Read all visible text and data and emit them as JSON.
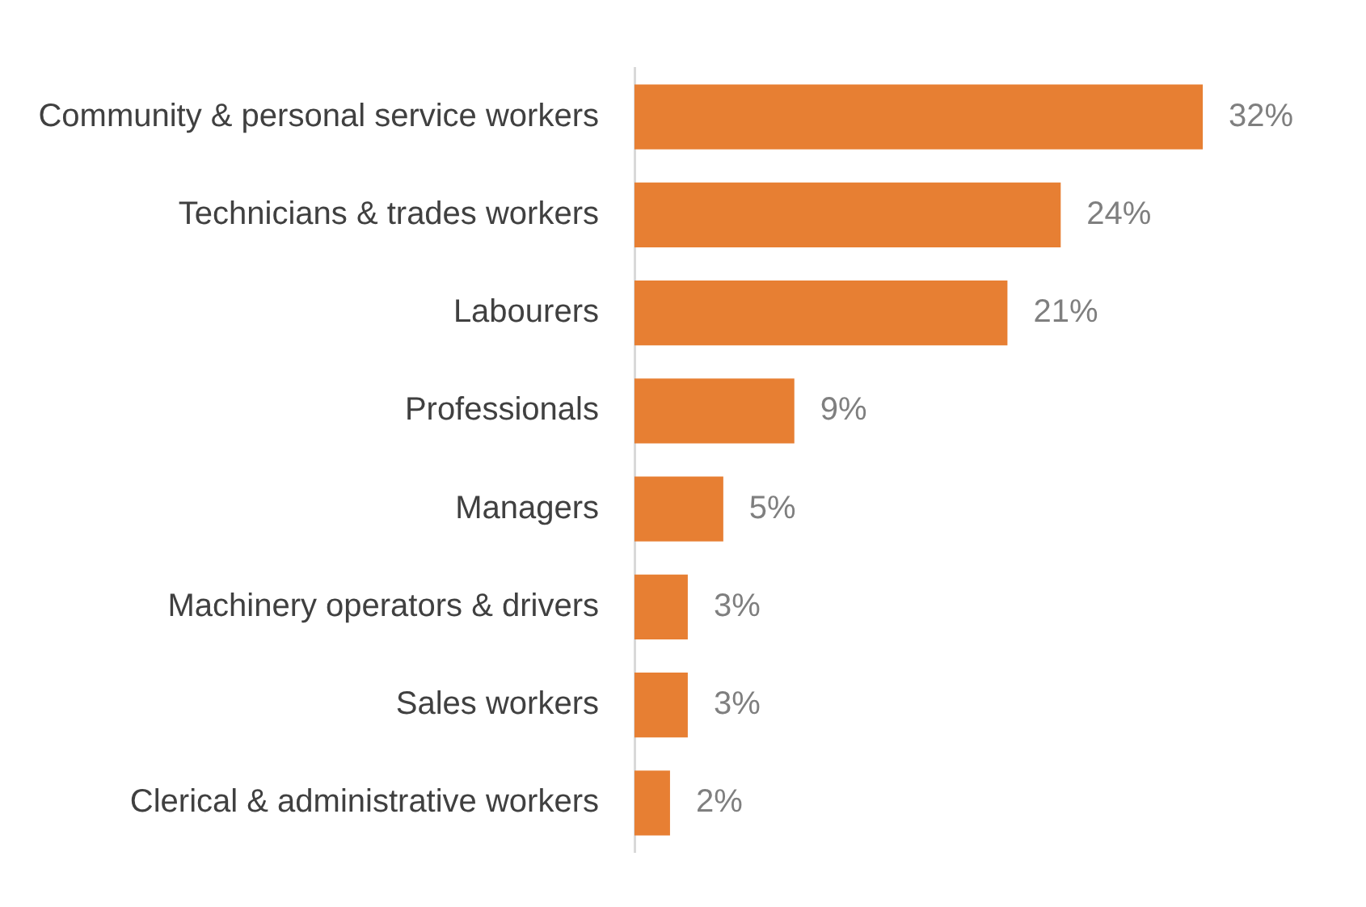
{
  "chart_data": {
    "type": "bar",
    "orientation": "horizontal",
    "categories": [
      "Community & personal service workers",
      "Technicians & trades workers",
      "Labourers",
      "Professionals",
      "Managers",
      "Machinery operators & drivers",
      "Sales workers",
      "Clerical & administrative workers"
    ],
    "values": [
      32,
      24,
      21,
      9,
      5,
      3,
      3,
      2
    ],
    "value_labels": [
      "32%",
      "24%",
      "21%",
      "9%",
      "5%",
      "3%",
      "3%",
      "2%"
    ],
    "color": "#e77f33"
  }
}
